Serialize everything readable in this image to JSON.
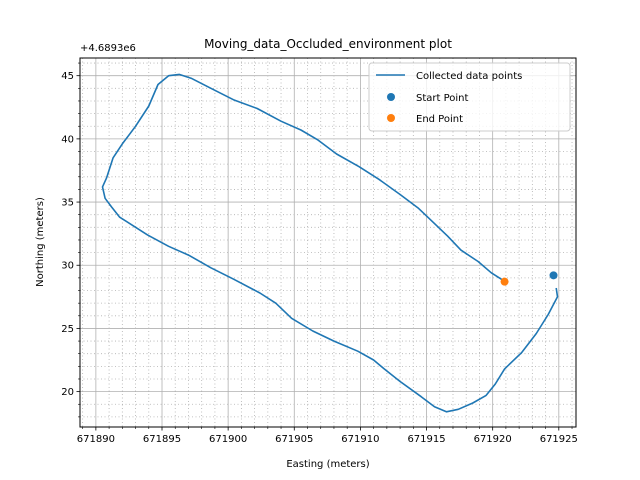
{
  "chart_data": {
    "type": "line",
    "title": "Moving_data_Occluded_environment plot",
    "xlabel": "Easting (meters)",
    "ylabel": "Northing (meters)",
    "y_offset_label": "+4.6893e6",
    "xlim": [
      671888.8,
      671926.3
    ],
    "ylim": [
      17.2,
      46.4
    ],
    "x_ticks": [
      671890,
      671895,
      671900,
      671905,
      671910,
      671915,
      671920,
      671925
    ],
    "x_tick_labels": [
      "671890",
      "671895",
      "671900",
      "671905",
      "671910",
      "671915",
      "671920",
      "671925"
    ],
    "y_ticks": [
      20,
      25,
      30,
      35,
      40,
      45
    ],
    "y_tick_labels": [
      "20",
      "25",
      "30",
      "35",
      "40",
      "45"
    ],
    "grid": true,
    "minor_grid": true,
    "legend_position": "top-right",
    "series": [
      {
        "name": "Collected data points",
        "kind": "line",
        "color": "#1f77b4",
        "x": [
          671924.8,
          671924.9,
          671924.2,
          671923.3,
          671922.2,
          671920.9,
          671920.2,
          671919.5,
          671918.5,
          671917.4,
          671916.5,
          671915.6,
          671914.6,
          671913.0,
          671911.8,
          671911.0,
          671909.8,
          671908.0,
          671906.4,
          671904.8,
          671903.6,
          671902.4,
          671900.4,
          671898.7,
          671897.0,
          671895.5,
          671893.9,
          671893.0,
          671891.8,
          671891.2,
          671890.7,
          671890.5,
          671890.8,
          671891.3,
          671892.0,
          671893.0,
          671894.0,
          671894.7,
          671895.5,
          671896.3,
          671897.2,
          671898.7,
          671900.4,
          671902.2,
          671904.0,
          671905.5,
          671906.8,
          671908.2,
          671909.9,
          671911.4,
          671913.0,
          671914.4,
          671915.5,
          671916.6,
          671917.6,
          671918.9,
          671919.9,
          671920.8
        ],
        "y": [
          28.2,
          27.5,
          26.1,
          24.6,
          23.1,
          21.8,
          20.6,
          19.7,
          19.1,
          18.6,
          18.4,
          18.8,
          19.6,
          20.8,
          21.8,
          22.5,
          23.2,
          24.0,
          24.8,
          25.8,
          27.0,
          27.8,
          28.9,
          29.8,
          30.8,
          31.5,
          32.4,
          33.0,
          33.8,
          34.6,
          35.3,
          36.2,
          36.9,
          38.5,
          39.6,
          41.0,
          42.6,
          44.3,
          45.0,
          45.1,
          44.8,
          44.0,
          43.1,
          42.4,
          41.4,
          40.7,
          39.9,
          38.8,
          37.8,
          36.8,
          35.6,
          34.5,
          33.4,
          32.3,
          31.2,
          30.3,
          29.4,
          28.8
        ]
      },
      {
        "name": "Start Point",
        "kind": "scatter",
        "color": "#1f77b4",
        "x": [
          671924.6
        ],
        "y": [
          29.2
        ]
      },
      {
        "name": "End Point",
        "kind": "scatter",
        "color": "#ff7f0e",
        "x": [
          671920.9
        ],
        "y": [
          28.7
        ]
      }
    ]
  }
}
